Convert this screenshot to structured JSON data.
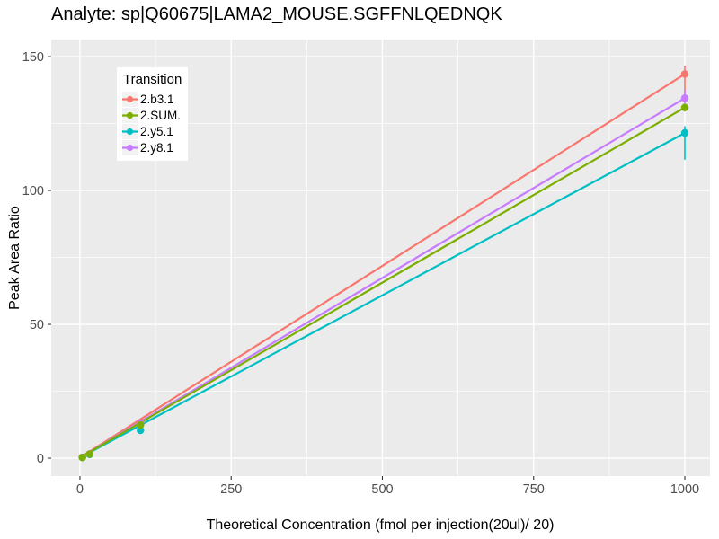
{
  "chart_data": {
    "type": "line",
    "title": "Analyte: sp|Q60675|LAMA2_MOUSE.SGFFNLQEDNQK",
    "xlabel": "Theoretical Concentration (fmol per injection(20ul)/ 20)",
    "ylabel": "Peak Area Ratio",
    "x_ticks": [
      0,
      250,
      500,
      750,
      1000
    ],
    "y_ticks": [
      0,
      50,
      100,
      150
    ],
    "x_minor_ticks": [
      125,
      375,
      625,
      875
    ],
    "y_minor_ticks": [
      25,
      75,
      125
    ],
    "xlim": [
      -47.5,
      1041.6
    ],
    "ylim": [
      -6.7,
      156.4
    ],
    "grid": true,
    "legend": {
      "title": "Transition",
      "position": "inside-top-left"
    },
    "style_colors": {
      "panel_background": "#EBEBEB",
      "gridline": "#FFFFFF",
      "tick_mark": "#333333",
      "tick_label": "#4D4D4D",
      "legend_key_background": "#F2F2F2"
    },
    "series": [
      {
        "name": "2.b3.1",
        "color": "#F8766D",
        "line": [
          [
            0,
            0.2
          ],
          [
            1000,
            143.5
          ]
        ],
        "points": [
          [
            4,
            0.3
          ],
          [
            16,
            1.6
          ],
          [
            100,
            13.2
          ],
          [
            1000,
            143.5
          ]
        ],
        "error_bars": [
          {
            "x": 1000,
            "low": 135.3,
            "high": 146.7
          }
        ]
      },
      {
        "name": "2.SUM.",
        "color": "#7CAE00",
        "line": [
          [
            0,
            0.2
          ],
          [
            1000,
            131
          ]
        ],
        "points": [
          [
            4,
            0.3
          ],
          [
            16,
            1.5
          ],
          [
            100,
            12.4
          ],
          [
            1000,
            131
          ]
        ],
        "error_bars": []
      },
      {
        "name": "2.y5.1",
        "color": "#00BFC4",
        "line": [
          [
            0,
            0.2
          ],
          [
            1000,
            121.5
          ]
        ],
        "points": [
          [
            4,
            0.25
          ],
          [
            16,
            1.4
          ],
          [
            100,
            10.4
          ],
          [
            1000,
            121.5
          ]
        ],
        "error_bars": [
          {
            "x": 1000,
            "low": 111.5,
            "high": 124
          }
        ]
      },
      {
        "name": "2.y8.1",
        "color": "#C77CFF",
        "line": [
          [
            0,
            0.2
          ],
          [
            1000,
            134.5
          ]
        ],
        "points": [
          [
            4,
            0.3
          ],
          [
            16,
            1.5
          ],
          [
            100,
            12.8
          ],
          [
            1000,
            134.5
          ]
        ],
        "error_bars": [
          {
            "x": 1000,
            "low": 129.5,
            "high": 137.5
          }
        ]
      }
    ]
  }
}
